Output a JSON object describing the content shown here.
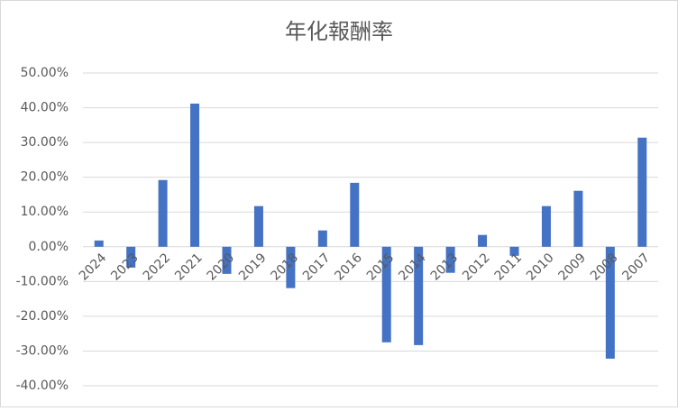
{
  "chart_data": {
    "type": "bar",
    "title": "年化報酬率",
    "categories": [
      "2024",
      "2023",
      "2022",
      "2021",
      "2020",
      "2019",
      "2018",
      "2017",
      "2016",
      "2015",
      "2014",
      "2013",
      "2012",
      "2011",
      "2010",
      "2009",
      "2008",
      "2007"
    ],
    "values": [
      1.8,
      -6.0,
      19.2,
      41.2,
      -7.8,
      11.7,
      -11.9,
      4.7,
      18.4,
      -27.5,
      -28.3,
      -7.5,
      3.4,
      -2.6,
      11.7,
      16.1,
      -32.2,
      31.4
    ],
    "color": "#4472c4",
    "ylim": [
      -40,
      50
    ],
    "yticks": [
      {
        "value": -40,
        "label": "-40.00%"
      },
      {
        "value": -30,
        "label": "-30.00%"
      },
      {
        "value": -20,
        "label": "-20.00%"
      },
      {
        "value": -10,
        "label": "-10.00%"
      },
      {
        "value": 0,
        "label": "0.00%"
      },
      {
        "value": 10,
        "label": "10.00%"
      },
      {
        "value": 20,
        "label": "20.00%"
      },
      {
        "value": 30,
        "label": "30.00%"
      },
      {
        "value": 40,
        "label": "40.00%"
      },
      {
        "value": 50,
        "label": "50.00%"
      }
    ],
    "grid": true
  }
}
